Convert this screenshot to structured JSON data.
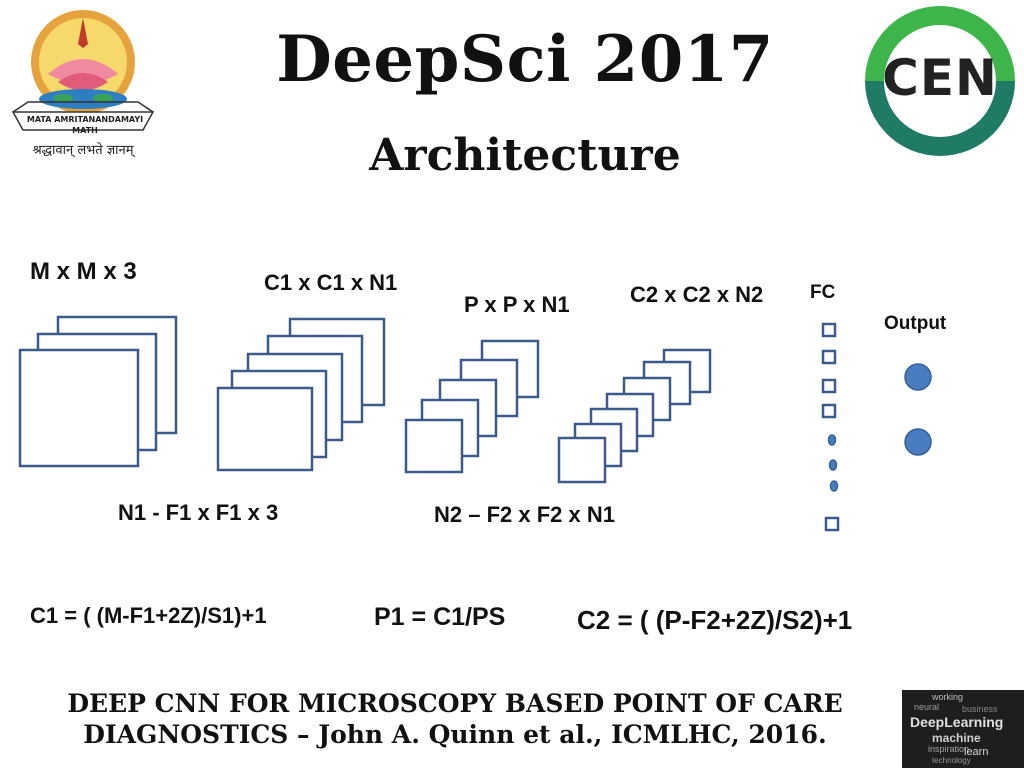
{
  "header": {
    "title": "DeepSci 2017",
    "subtitle": "Architecture"
  },
  "logos": {
    "left_logo_text": "MATA AMRITANANDAMAYI MATH",
    "left_logo_motto": "श्रद्धावान् लभते ज्ञानम्",
    "right_logo_text": "CEN",
    "corner_image_words": [
      "working",
      "neural",
      "DeepLearning",
      "business",
      "machine",
      "inspiration",
      "learn",
      "technology"
    ]
  },
  "diagram": {
    "input_label": "M x M x 3",
    "conv1_label": "C1 x C1 x N1",
    "pool_label": "P x P x N1",
    "conv2_label": "C2 x C2 x N2",
    "fc_label": "FC",
    "output_label": "Output",
    "filter1_label": "N1 - F1 x F1 x 3",
    "filter2_label": "N2 – F2 x F2 x N1",
    "colors": {
      "box_stroke": "#3a5b8c",
      "output_fill": "#4a7cc0"
    }
  },
  "formulas": {
    "c1": "C1 = ( (M-F1+2Z)/S1)+1",
    "p1": "P1 = C1/PS",
    "c2": "C2 = ( (P-F2+2Z)/S2)+1"
  },
  "footer": {
    "line1": "DEEP CNN FOR MICROSCOPY BASED POINT OF CARE",
    "line2": "DIAGNOSTICS – John A. Quinn et al., ICMLHC, 2016."
  }
}
